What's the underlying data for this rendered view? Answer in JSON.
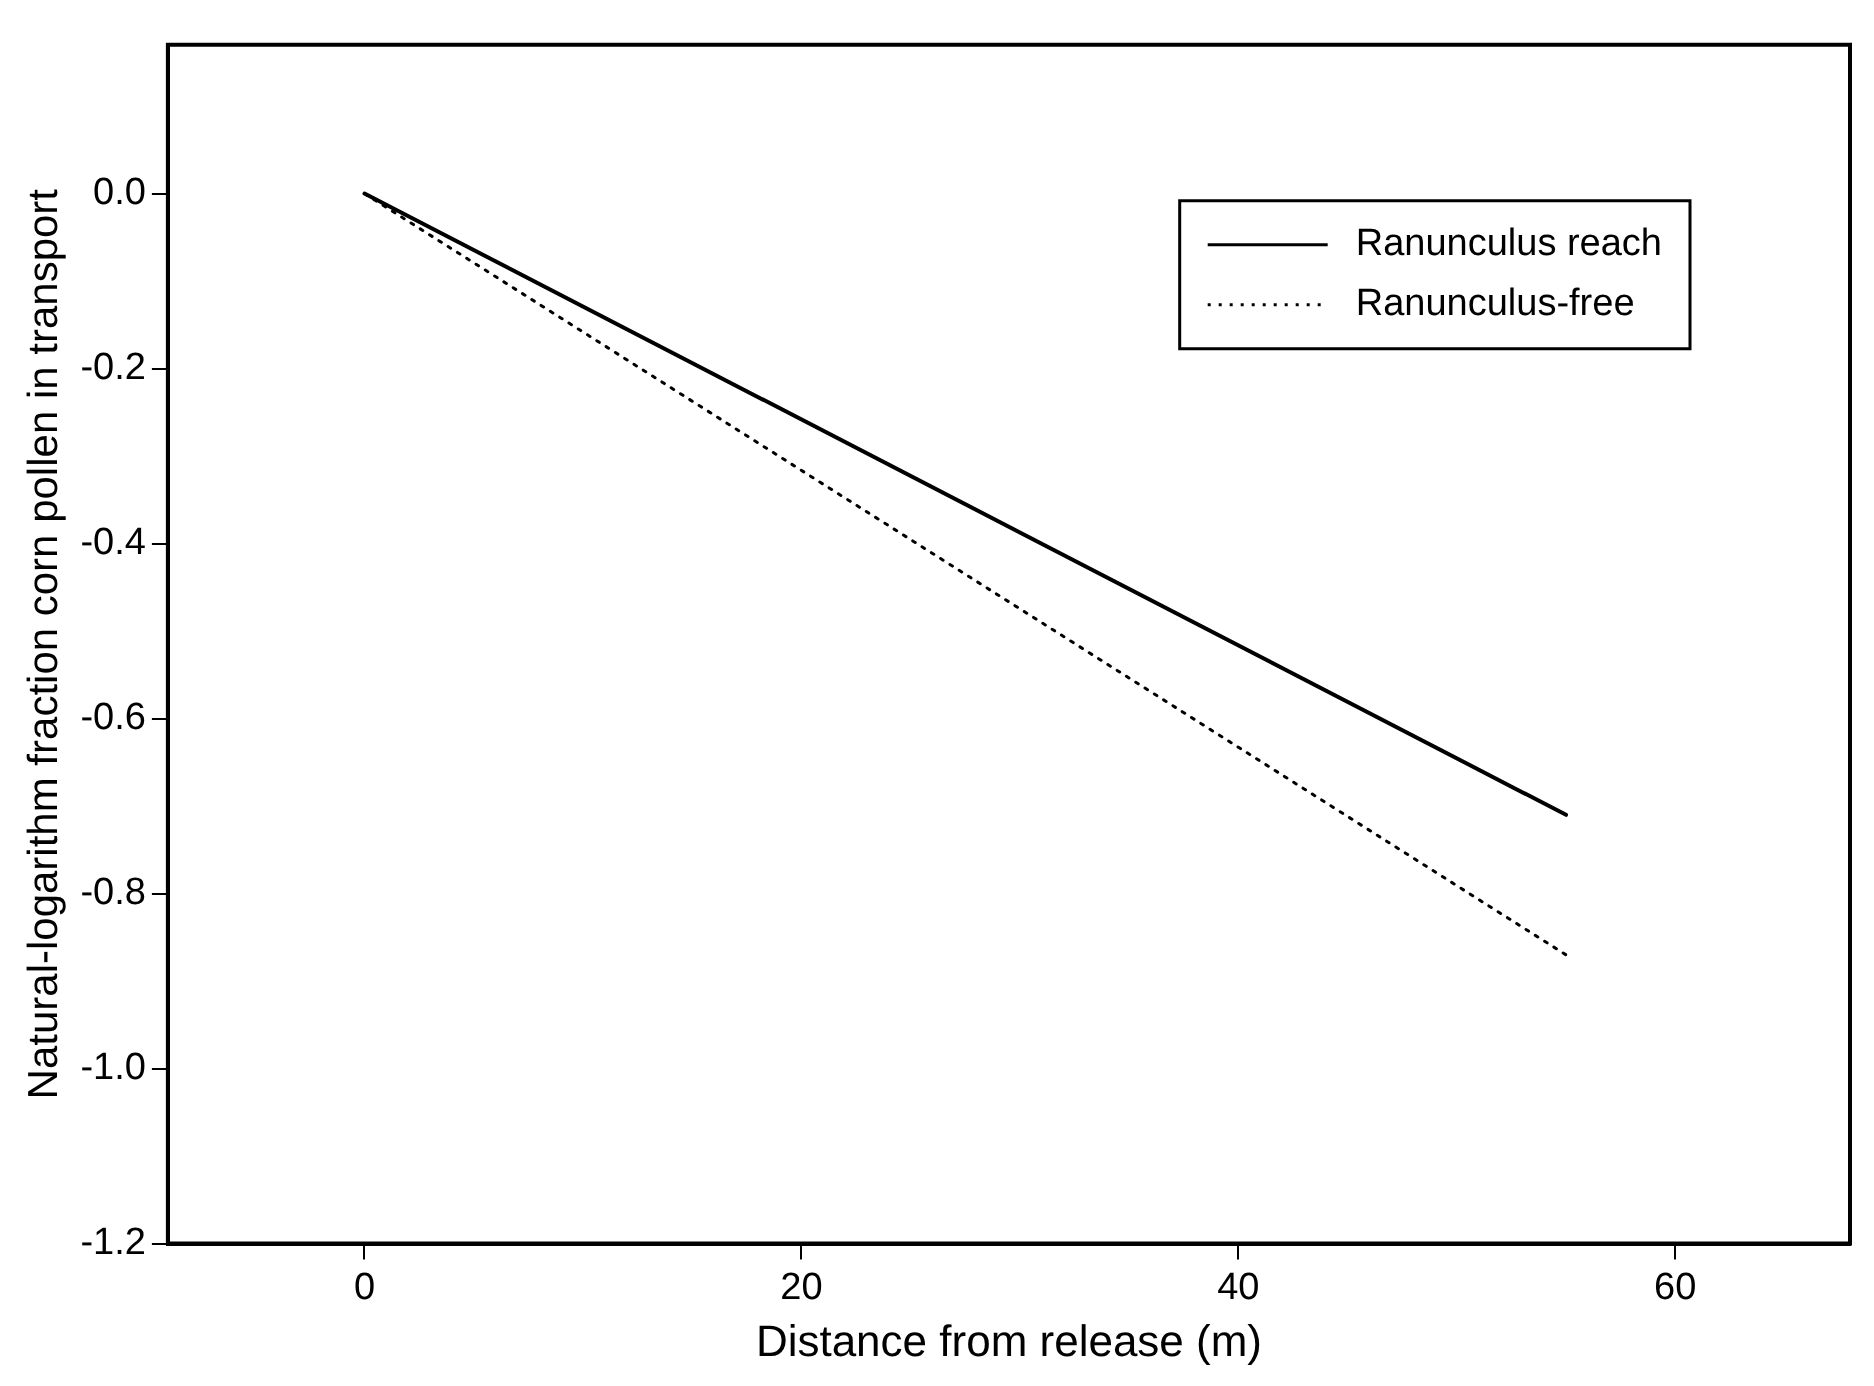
{
  "chart_data": {
    "type": "line",
    "xlabel": "Distance from release (m)",
    "ylabel": "Natural-logarithm fraction corn pollen in transport",
    "x": [
      0,
      55
    ],
    "series": [
      {
        "name": "Ranunculus reach",
        "color": "#000000",
        "values": [
          0,
          -0.71
        ],
        "line_style": "solid"
      },
      {
        "name": "Ranunculus-free",
        "color": "#000000",
        "values": [
          0,
          -0.87
        ],
        "line_style": "dotted"
      }
    ],
    "xlim": [
      -9,
      68
    ],
    "xticks": [
      0,
      20,
      40,
      60
    ],
    "ylim": [
      -1.2,
      0.17
    ],
    "yticks": [
      {
        "value": 0,
        "label": "0.0"
      },
      {
        "value": -0.2,
        "label": "-0.2"
      },
      {
        "value": -0.4,
        "label": "-0.4"
      },
      {
        "value": -0.6,
        "label": "-0.6"
      },
      {
        "value": -0.8,
        "label": "-0.8"
      },
      {
        "value": -1,
        "label": "-1.0"
      },
      {
        "value": -1.2,
        "label": "-1.2"
      }
    ],
    "grid": false,
    "legend": "top right",
    "marker": "none"
  }
}
